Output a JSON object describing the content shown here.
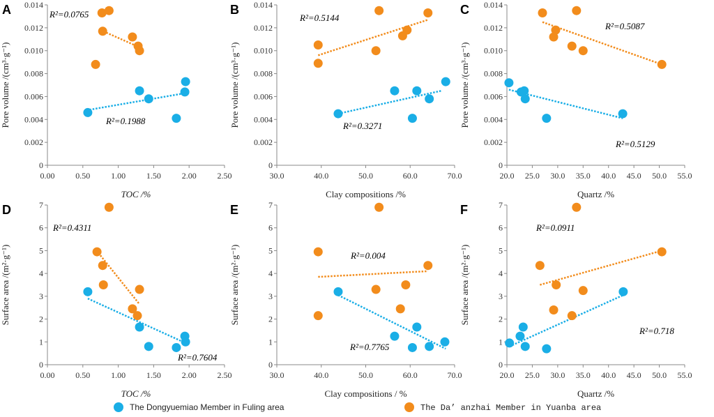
{
  "colors": {
    "blue": "#1aaee6",
    "orange": "#f28c1c",
    "r2_dark": "#1f2a7a"
  },
  "legend": [
    {
      "label": "The Dongyuemiao Member in Fuling area",
      "color": "#1aaee6"
    },
    {
      "label": "The Da’ anzhai Member in Yuanba area",
      "color": "#f28c1c"
    }
  ],
  "chart_data": [
    {
      "panel": "A",
      "type": "scatter",
      "xlabel": "TOC /%",
      "ylabel": "Pore volume /(cm³·g⁻¹)",
      "xlim": [
        0,
        2.5
      ],
      "ylim": [
        0,
        0.014
      ],
      "xticks": [
        "0.00",
        "0.50",
        "1.00",
        "1.50",
        "2.00",
        "2.50"
      ],
      "yticks": [
        "0",
        "0.002",
        "0.004",
        "0.006",
        "0.008",
        "0.010",
        "0.012",
        "0.014"
      ],
      "series": [
        {
          "name": "The Dongyuemiao Member in Fuling area",
          "points": [
            [
              0.57,
              0.0046
            ],
            [
              1.3,
              0.0065
            ],
            [
              1.43,
              0.0058
            ],
            [
              1.82,
              0.0041
            ],
            [
              1.94,
              0.0064
            ],
            [
              1.95,
              0.0073
            ]
          ],
          "trend": [
            [
              0.55,
              0.0048
            ],
            [
              1.95,
              0.0063
            ]
          ],
          "r2_label": "R²=0.1988"
        },
        {
          "name": "The Da’ anzhai Member in Yuanba area",
          "points": [
            [
              0.68,
              0.0088
            ],
            [
              0.77,
              0.0133
            ],
            [
              0.78,
              0.0117
            ],
            [
              0.87,
              0.0135
            ],
            [
              1.2,
              0.0112
            ],
            [
              1.28,
              0.0104
            ],
            [
              1.3,
              0.01
            ]
          ],
          "trend": [
            [
              0.75,
              0.0118
            ],
            [
              1.3,
              0.0103
            ]
          ],
          "r2_label": "R²=0.0765"
        }
      ]
    },
    {
      "panel": "B",
      "type": "scatter",
      "xlabel": "Clay compositions /%",
      "ylabel": "Pore volume /(cm³·g⁻¹)",
      "xlim": [
        30,
        70
      ],
      "ylim": [
        0,
        0.014
      ],
      "xticks": [
        "30.0",
        "40.0",
        "50.0",
        "60.0",
        "70.0"
      ],
      "yticks": [
        "0",
        "0.002",
        "0.004",
        "0.006",
        "0.008",
        "0.010",
        "0.012",
        "0.014"
      ],
      "series": [
        {
          "name": "The Dongyuemiao Member in Fuling area",
          "points": [
            [
              43.8,
              0.0045
            ],
            [
              56.5,
              0.0065
            ],
            [
              60.5,
              0.0041
            ],
            [
              61.5,
              0.0065
            ],
            [
              64.3,
              0.0058
            ],
            [
              68,
              0.0073
            ]
          ],
          "trend": [
            [
              43.8,
              0.0045
            ],
            [
              67,
              0.0065
            ]
          ],
          "r2_label": "R²=0.3271"
        },
        {
          "name": "The Da’ anzhai Member in Yuanba area",
          "points": [
            [
              39.3,
              0.0089
            ],
            [
              39.3,
              0.0105
            ],
            [
              52.3,
              0.01
            ],
            [
              53,
              0.0135
            ],
            [
              58.3,
              0.0113
            ],
            [
              59.3,
              0.0118
            ],
            [
              64,
              0.0133
            ]
          ],
          "trend": [
            [
              39.3,
              0.0096
            ],
            [
              64,
              0.0127
            ]
          ],
          "r2_label": "R²=0.5144"
        }
      ]
    },
    {
      "panel": "C",
      "type": "scatter",
      "xlabel": "Quartz /%",
      "ylabel": "Pore volume /(cm³·g⁻¹)",
      "xlim": [
        20,
        55
      ],
      "ylim": [
        0,
        0.014
      ],
      "xticks": [
        "20.0",
        "25.0",
        "30.0",
        "35.0",
        "40.0",
        "45.0",
        "50.0",
        "55.0"
      ],
      "yticks": [
        "0",
        "0.002",
        "0.004",
        "0.006",
        "0.008",
        "0.010",
        "0.012",
        "0.014"
      ],
      "series": [
        {
          "name": "The Dongyuemiao Member in Fuling area",
          "points": [
            [
              20.4,
              0.0072
            ],
            [
              22.8,
              0.0064
            ],
            [
              23.4,
              0.0065
            ],
            [
              23.6,
              0.0058
            ],
            [
              27.8,
              0.0041
            ],
            [
              42.8,
              0.0045
            ]
          ],
          "trend": [
            [
              20.4,
              0.0066
            ],
            [
              42.8,
              0.0041
            ]
          ],
          "r2_label": "R²=0.5129"
        },
        {
          "name": "The Da’ anzhai Member in Yuanba area",
          "points": [
            [
              27,
              0.0133
            ],
            [
              29.2,
              0.0112
            ],
            [
              29.6,
              0.0118
            ],
            [
              32.8,
              0.0104
            ],
            [
              33.7,
              0.0135
            ],
            [
              35,
              0.01
            ],
            [
              50.5,
              0.0088
            ]
          ],
          "trend": [
            [
              27,
              0.0125
            ],
            [
              50.5,
              0.0088
            ]
          ],
          "r2_label": "R²=0.5087"
        }
      ]
    },
    {
      "panel": "D",
      "type": "scatter",
      "xlabel": "TOC /%",
      "ylabel": "Surface area /(m²·g⁻¹)",
      "xlim": [
        0,
        2.5
      ],
      "ylim": [
        0,
        7
      ],
      "xticks": [
        "0.00",
        "0.50",
        "1.00",
        "1.50",
        "2.00",
        "2.50"
      ],
      "yticks": [
        "0",
        "1",
        "2",
        "3",
        "4",
        "5",
        "6",
        "7"
      ],
      "series": [
        {
          "name": "The Dongyuemiao Member in Fuling area",
          "points": [
            [
              0.57,
              3.2
            ],
            [
              1.3,
              1.65
            ],
            [
              1.43,
              0.8
            ],
            [
              1.82,
              0.75
            ],
            [
              1.94,
              1.25
            ],
            [
              1.95,
              1.0
            ]
          ],
          "trend": [
            [
              0.57,
              2.9
            ],
            [
              1.95,
              0.95
            ]
          ],
          "r2_label": "R²=0.7604"
        },
        {
          "name": "The Da’ anzhai Member in Yuanba area",
          "points": [
            [
              0.7,
              4.95
            ],
            [
              0.78,
              4.35
            ],
            [
              0.79,
              3.5
            ],
            [
              0.87,
              6.9
            ],
            [
              1.2,
              2.45
            ],
            [
              1.27,
              2.15
            ],
            [
              1.3,
              3.3
            ]
          ],
          "trend": [
            [
              0.72,
              4.9
            ],
            [
              1.3,
              2.65
            ]
          ],
          "r2_label": "R²=0.4311"
        }
      ]
    },
    {
      "panel": "E",
      "type": "scatter",
      "xlabel": "Clay compositions / %",
      "ylabel": "Surface area /(m²·g⁻¹)",
      "xlim": [
        30,
        70
      ],
      "ylim": [
        0,
        7
      ],
      "xticks": [
        "30.0",
        "40.0",
        "50.0",
        "60.0",
        "70.0"
      ],
      "yticks": [
        "0",
        "1",
        "2",
        "3",
        "4",
        "5",
        "6",
        "7"
      ],
      "series": [
        {
          "name": "The Dongyuemiao Member in Fuling area",
          "points": [
            [
              43.8,
              3.2
            ],
            [
              56.5,
              1.25
            ],
            [
              60.5,
              0.75
            ],
            [
              61.5,
              1.65
            ],
            [
              64.3,
              0.8
            ],
            [
              67.8,
              1.0
            ]
          ],
          "trend": [
            [
              43.8,
              3.05
            ],
            [
              68,
              0.7
            ]
          ],
          "r2_label": "R²=0.7765"
        },
        {
          "name": "The Da’ anzhai Member in Yuanba area",
          "points": [
            [
              39.3,
              4.95
            ],
            [
              39.3,
              2.15
            ],
            [
              52.3,
              3.3
            ],
            [
              53,
              6.9
            ],
            [
              57.8,
              2.45
            ],
            [
              59,
              3.5
            ],
            [
              64,
              4.35
            ]
          ],
          "trend": [
            [
              39.3,
              3.85
            ],
            [
              64,
              4.1
            ]
          ],
          "r2_label": "R²=0.004"
        }
      ]
    },
    {
      "panel": "F",
      "type": "scatter",
      "xlabel": "Quartz /%",
      "ylabel": "Surface area /(m²·g⁻¹)",
      "xlim": [
        20,
        55
      ],
      "ylim": [
        0,
        7
      ],
      "xticks": [
        "20.0",
        "25.0",
        "30.0",
        "35.0",
        "40.0",
        "45.0",
        "50.0",
        "55.0"
      ],
      "yticks": [
        "0",
        "1",
        "2",
        "3",
        "4",
        "5",
        "6",
        "7"
      ],
      "series": [
        {
          "name": "The Dongyuemiao Member in Fuling area",
          "points": [
            [
              20.5,
              0.95
            ],
            [
              22.6,
              1.25
            ],
            [
              23.2,
              1.65
            ],
            [
              23.6,
              0.8
            ],
            [
              27.8,
              0.7
            ],
            [
              42.9,
              3.2
            ]
          ],
          "trend": [
            [
              20.5,
              0.8
            ],
            [
              42.9,
              3.05
            ]
          ],
          "r2_label": "R²=0.718"
        },
        {
          "name": "The Da’ anzhai Member in Yuanba area",
          "points": [
            [
              26.5,
              4.35
            ],
            [
              29.2,
              2.4
            ],
            [
              29.7,
              3.5
            ],
            [
              32.8,
              2.15
            ],
            [
              33.7,
              6.9
            ],
            [
              35,
              3.25
            ],
            [
              50.5,
              4.95
            ]
          ],
          "trend": [
            [
              26.5,
              3.5
            ],
            [
              50.5,
              5.0
            ]
          ],
          "r2_label": "R²=0.0911"
        }
      ]
    }
  ]
}
